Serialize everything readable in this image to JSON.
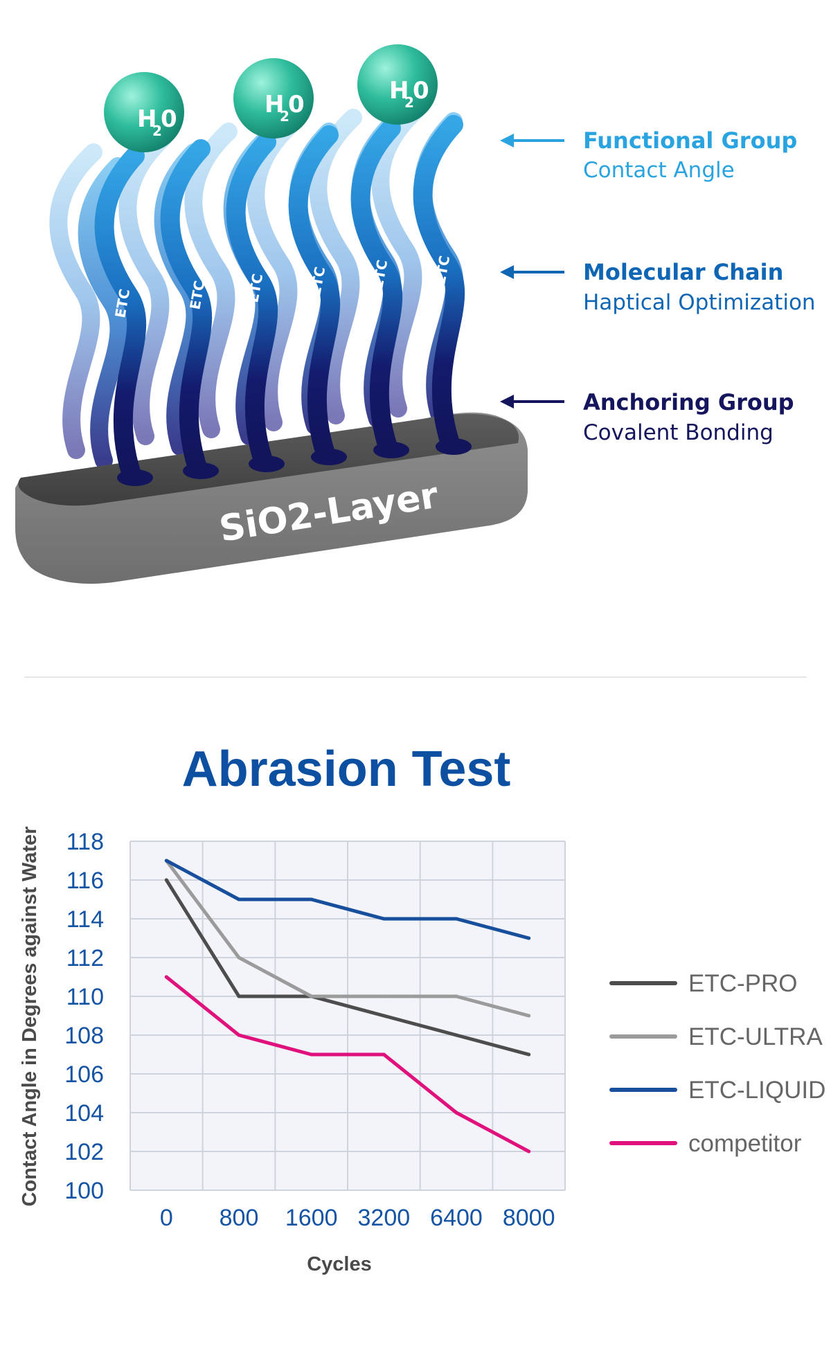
{
  "diagram": {
    "molecules": [
      "H",
      "2",
      "0"
    ],
    "chain_label": "ETC",
    "layer_label": "SiO2-Layer",
    "annotations": [
      {
        "title": "Functional Group",
        "subtitle": "Contact Angle",
        "color": "#2aa4e0"
      },
      {
        "title": "Molecular Chain",
        "subtitle": "Haptical Optimization",
        "color": "#0f66b5"
      },
      {
        "title": "Anchoring Group",
        "subtitle": "Covalent Bonding",
        "color": "#15155e"
      }
    ]
  },
  "chart_data": {
    "type": "line",
    "title": "Abrasion Test",
    "xlabel": "Cycles",
    "ylabel": "Contact Angle in Degrees against Water",
    "categories": [
      "0",
      "800",
      "1600",
      "3200",
      "6400",
      "8000"
    ],
    "ylim": [
      100,
      118
    ],
    "yticks": [
      118,
      116,
      114,
      112,
      110,
      108,
      106,
      104,
      102,
      100
    ],
    "grid": true,
    "legend_position": "right",
    "series": [
      {
        "name": "ETC-PRO",
        "color": "#4d4d4d",
        "values": [
          116,
          110,
          110,
          109,
          108,
          107
        ]
      },
      {
        "name": "ETC-ULTRA",
        "color": "#9b9b9b",
        "values": [
          117,
          112,
          110,
          110,
          110,
          109
        ]
      },
      {
        "name": "ETC-LIQUID",
        "color": "#174f9c",
        "values": [
          117,
          115,
          115,
          114,
          114,
          113
        ]
      },
      {
        "name": "competitor",
        "color": "#e0117d",
        "values": [
          111,
          108,
          107,
          107,
          104,
          102
        ]
      }
    ]
  }
}
